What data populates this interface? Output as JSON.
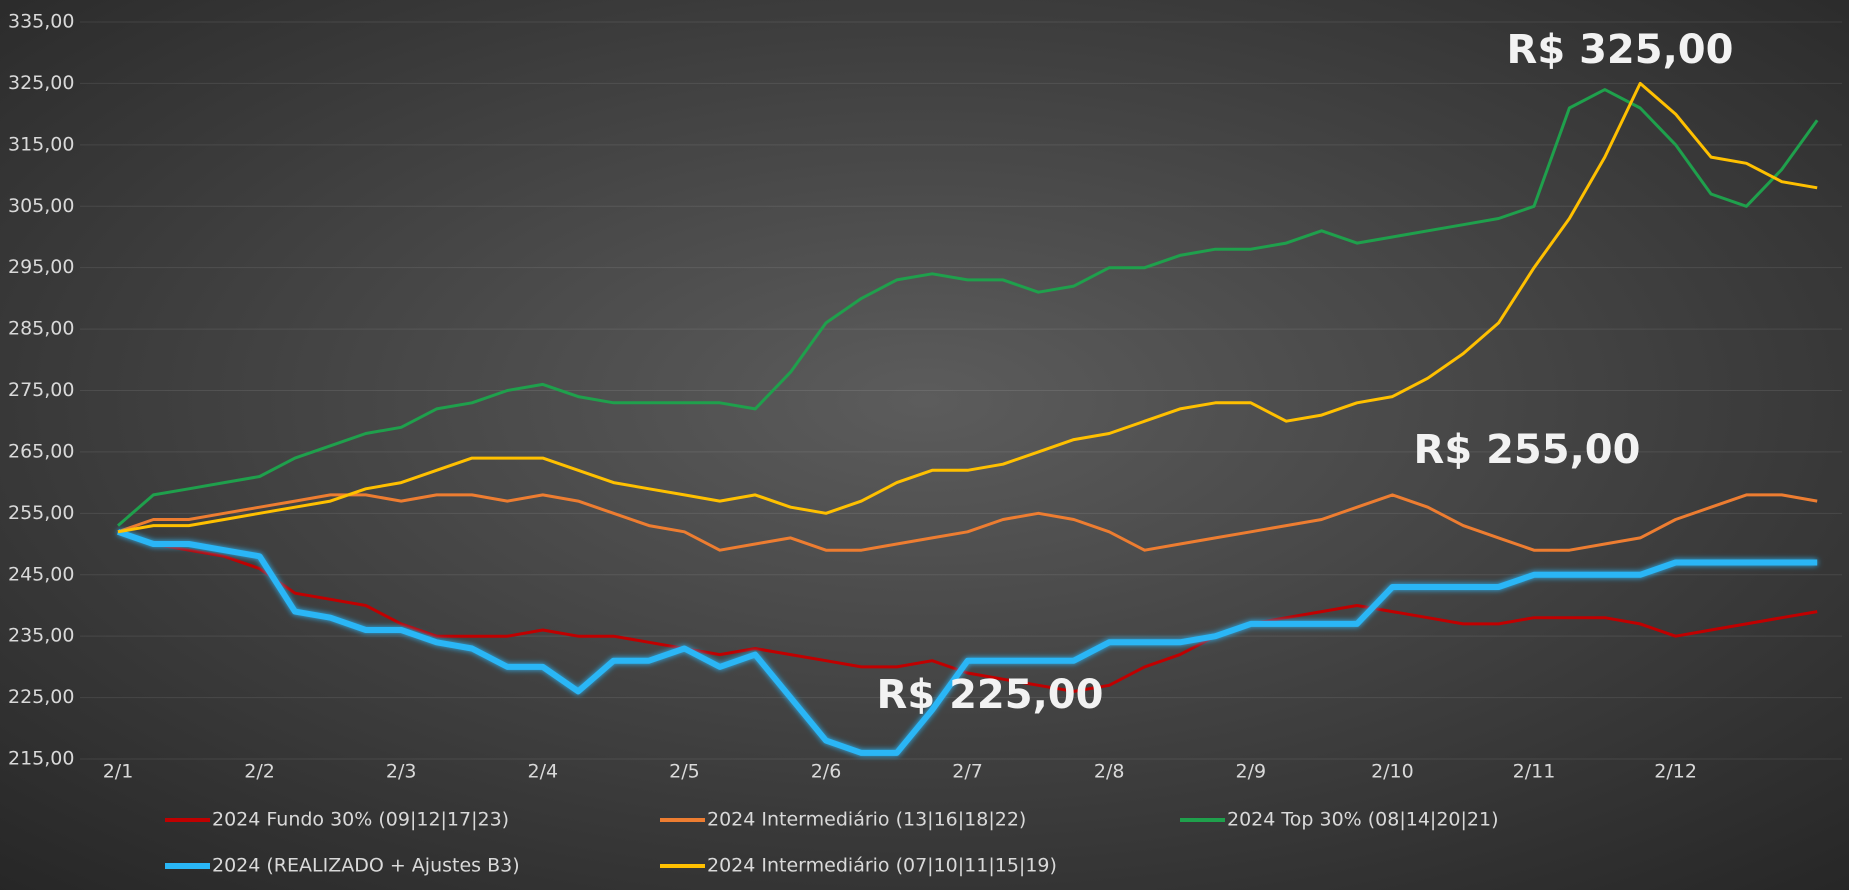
{
  "chart_data": {
    "type": "line",
    "categories": [
      "2/1",
      null,
      null,
      null,
      "2/2",
      null,
      null,
      null,
      "2/3",
      null,
      null,
      null,
      "2/4",
      null,
      null,
      null,
      "2/5",
      null,
      null,
      null,
      "2/6",
      null,
      null,
      null,
      "2/7",
      null,
      null,
      null,
      "2/8",
      null,
      null,
      null,
      "2/9",
      null,
      null,
      null,
      "2/10",
      null,
      null,
      null,
      "2/11",
      null,
      null,
      null,
      "2/12",
      null,
      null,
      null,
      null
    ],
    "series": [
      {
        "name": "2024 Fundo 30% (09|12|17|23)",
        "color": "#c00000",
        "values": [
          252,
          250,
          249,
          248,
          246,
          242,
          241,
          240,
          237,
          235,
          235,
          235,
          236,
          235,
          235,
          234,
          233,
          232,
          233,
          232,
          231,
          230,
          230,
          231,
          229,
          228,
          227,
          226,
          227,
          230,
          232,
          235,
          237,
          238,
          239,
          240,
          239,
          238,
          237,
          237,
          238,
          238,
          238,
          237,
          235,
          236,
          237,
          238,
          239
        ]
      },
      {
        "name": "2024 Intermediário (13|16|18|22)",
        "color": "#ed7d31",
        "values": [
          252,
          254,
          254,
          255,
          256,
          257,
          258,
          258,
          257,
          258,
          258,
          257,
          258,
          257,
          255,
          253,
          252,
          249,
          250,
          251,
          249,
          249,
          250,
          251,
          252,
          254,
          255,
          254,
          252,
          249,
          250,
          251,
          252,
          253,
          254,
          256,
          258,
          256,
          253,
          251,
          249,
          249,
          250,
          251,
          254,
          256,
          258,
          258,
          257
        ]
      },
      {
        "name": "2024 Top 30% (08|14|20|21)",
        "color": "#1fa04c",
        "values": [
          253,
          258,
          259,
          260,
          261,
          264,
          266,
          268,
          269,
          272,
          273,
          275,
          276,
          274,
          273,
          273,
          273,
          273,
          272,
          278,
          286,
          290,
          293,
          294,
          293,
          293,
          291,
          292,
          295,
          295,
          297,
          298,
          298,
          299,
          301,
          299,
          300,
          301,
          302,
          303,
          305,
          321,
          324,
          321,
          315,
          307,
          305,
          311,
          319
        ]
      },
      {
        "name": "2024 (REALIZADO + Ajustes B3)",
        "color": "#29b6f6",
        "values": [
          252,
          250,
          250,
          249,
          248,
          239,
          238,
          236,
          236,
          234,
          233,
          230,
          230,
          226,
          231,
          231,
          233,
          230,
          232,
          225,
          218,
          216,
          216,
          223,
          231,
          231,
          231,
          231,
          234,
          234,
          234,
          235,
          237,
          237,
          237,
          237,
          243,
          243,
          243,
          243,
          245,
          245,
          245,
          245,
          247,
          247,
          247,
          247,
          247
        ]
      },
      {
        "name": "2024 Intermediário (07|10|11|15|19)",
        "color": "#ffc000",
        "values": [
          252,
          253,
          253,
          254,
          255,
          256,
          257,
          259,
          260,
          262,
          264,
          264,
          264,
          262,
          260,
          259,
          258,
          257,
          258,
          256,
          255,
          257,
          260,
          262,
          262,
          263,
          265,
          267,
          268,
          270,
          272,
          273,
          273,
          270,
          271,
          273,
          274,
          277,
          281,
          286,
          295,
          303,
          313,
          325,
          320,
          313,
          312,
          309,
          308
        ]
      }
    ],
    "ylim": [
      215,
      335
    ],
    "yticks": [
      {
        "value": 215,
        "label": "215,00"
      },
      {
        "value": 225,
        "label": "225,00"
      },
      {
        "value": 235,
        "label": "235,00"
      },
      {
        "value": 245,
        "label": "245,00"
      },
      {
        "value": 255,
        "label": "255,00"
      },
      {
        "value": 265,
        "label": "265,00"
      },
      {
        "value": 275,
        "label": "275,00"
      },
      {
        "value": 285,
        "label": "285,00"
      },
      {
        "value": 295,
        "label": "295,00"
      },
      {
        "value": 305,
        "label": "305,00"
      },
      {
        "value": 315,
        "label": "315,00"
      },
      {
        "value": 325,
        "label": "325,00"
      },
      {
        "value": 335,
        "label": "335,00"
      }
    ],
    "grid": true,
    "annotations": [
      "R$ 325,00",
      "R$ 255,00",
      "R$ 225,00"
    ]
  }
}
